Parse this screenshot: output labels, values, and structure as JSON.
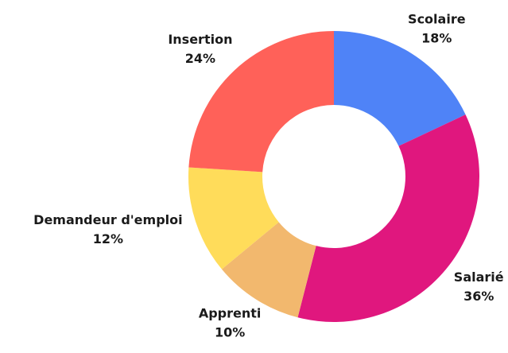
{
  "chart_data": {
    "type": "donut",
    "categories": [
      "Scolaire",
      "Salarié",
      "Apprenti",
      "Demandeur d'emploi",
      "Insertion"
    ],
    "values": [
      18,
      36,
      10,
      12,
      24
    ],
    "value_labels": [
      "18%",
      "36%",
      "10%",
      "12%",
      "24%"
    ],
    "colors": [
      "#4f83f7",
      "#e0177e",
      "#f2b86e",
      "#ffdc5a",
      "#ff6159"
    ]
  }
}
